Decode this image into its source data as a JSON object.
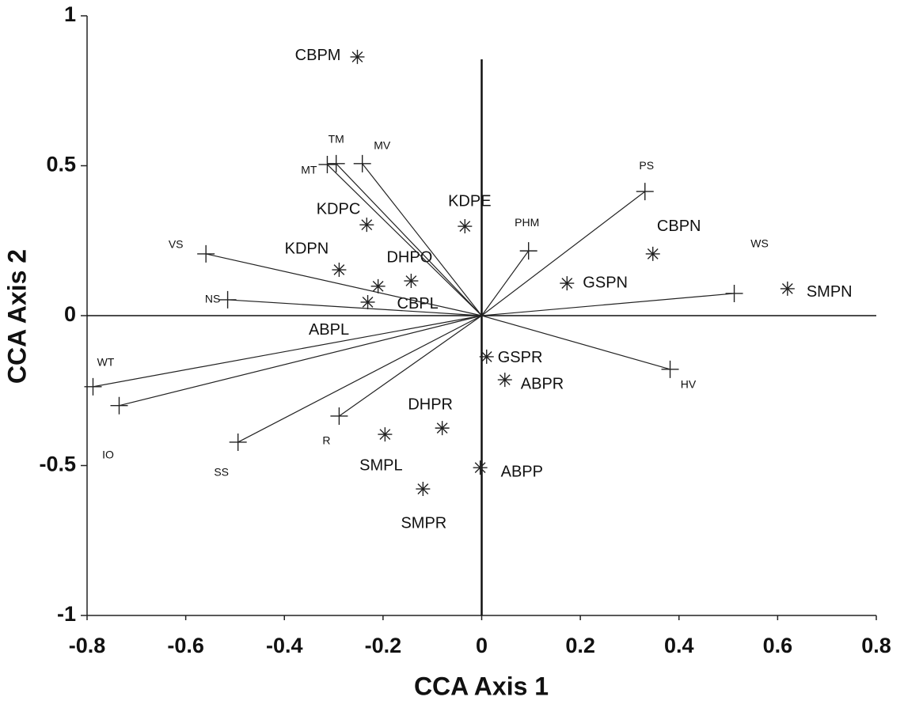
{
  "chart_data": {
    "type": "scatter",
    "xlabel": "CCA Axis 1",
    "ylabel": "CCA Axis 2",
    "xlim": [
      -0.8,
      0.8
    ],
    "ylim": [
      -1,
      1
    ],
    "xticks": [
      -0.8,
      -0.6,
      -0.4,
      -0.2,
      0,
      0.2,
      0.4,
      0.6,
      0.8
    ],
    "yticks": [
      -1,
      -0.5,
      0,
      0.5,
      1
    ],
    "zero_lines": true,
    "series": [
      {
        "marker": "asterisk",
        "color": "#222222",
        "labels": [
          "CBPM",
          "KDPC",
          "KDPE",
          "CBPN",
          "GSPN",
          "SMPN",
          "KDPN",
          "DHPO",
          "CBPL",
          "ABPL",
          "GSPR",
          "ABPR",
          "DHPR",
          "SMPL",
          "ABPP",
          "SMPR"
        ],
        "x": [
          -0.252,
          -0.233,
          -0.034,
          0.347,
          0.173,
          0.62,
          -0.289,
          -0.143,
          -0.21,
          -0.231,
          0.01,
          0.047,
          -0.08,
          -0.196,
          -0.003,
          -0.119
        ],
        "values": [
          0.863,
          0.303,
          0.298,
          0.206,
          0.108,
          0.09,
          0.153,
          0.116,
          0.098,
          0.045,
          -0.137,
          -0.214,
          -0.375,
          -0.396,
          -0.507,
          -0.578
        ]
      },
      {
        "marker": "plus",
        "vectors": true,
        "color": "#222222",
        "labels": [
          "TM",
          "MT",
          "MV",
          "PS",
          "PHM",
          "WS",
          "VS",
          "NS",
          "WT",
          "IO",
          "SS",
          "R",
          "HV"
        ],
        "x": [
          -0.295,
          -0.313,
          -0.242,
          0.331,
          0.095,
          0.512,
          -0.559,
          -0.515,
          -0.788,
          -0.735,
          -0.494,
          -0.289,
          0.382
        ],
        "values": [
          0.507,
          0.504,
          0.507,
          0.414,
          0.216,
          0.074,
          0.206,
          0.053,
          -0.237,
          -0.3,
          -0.422,
          -0.335,
          -0.179
        ]
      }
    ]
  }
}
